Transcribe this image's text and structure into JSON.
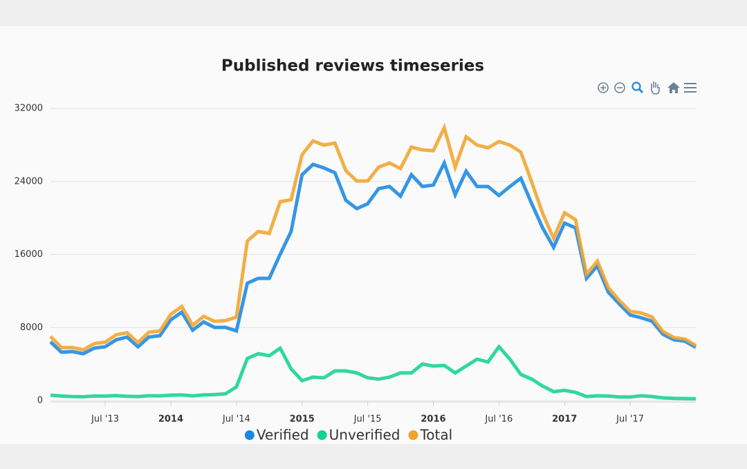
{
  "chart_data": {
    "type": "line",
    "title": "Published reviews timeseries",
    "x": [
      "2013-02",
      "2013-03",
      "2013-04",
      "2013-05",
      "2013-06",
      "2013-07",
      "2013-08",
      "2013-09",
      "2013-10",
      "2013-11",
      "2013-12",
      "2014-01",
      "2014-02",
      "2014-03",
      "2014-04",
      "2014-05",
      "2014-06",
      "2014-07",
      "2014-08",
      "2014-09",
      "2014-10",
      "2014-11",
      "2014-12",
      "2015-01",
      "2015-02",
      "2015-03",
      "2015-04",
      "2015-05",
      "2015-06",
      "2015-07",
      "2015-08",
      "2015-09",
      "2015-10",
      "2015-11",
      "2015-12",
      "2016-01",
      "2016-02",
      "2016-03",
      "2016-04",
      "2016-05",
      "2016-06",
      "2016-07",
      "2016-08",
      "2016-09",
      "2016-10",
      "2016-11",
      "2016-12",
      "2017-01",
      "2017-02",
      "2017-03",
      "2017-04",
      "2017-05",
      "2017-06",
      "2017-07",
      "2017-08",
      "2017-09",
      "2017-10",
      "2017-11",
      "2017-12",
      "2018-01"
    ],
    "series": [
      {
        "name": "Verified",
        "color": "#1a88e0",
        "values": [
          6430,
          5300,
          5370,
          5140,
          5750,
          5900,
          6660,
          6960,
          5900,
          6960,
          7110,
          8850,
          9680,
          7720,
          8620,
          8020,
          8020,
          7640,
          12860,
          13390,
          13390,
          16040,
          18530,
          24740,
          25870,
          25490,
          24960,
          21940,
          21030,
          21560,
          23220,
          23450,
          22390,
          24740,
          23450,
          23600,
          26020,
          22540,
          25120,
          23450,
          23450,
          22470,
          23450,
          24360,
          21560,
          18910,
          16790,
          19440,
          18910,
          13390,
          14750,
          11880,
          10590,
          9380,
          9080,
          8700,
          7260,
          6660,
          6510,
          5830
        ]
      },
      {
        "name": "Unverified",
        "color": "#13d38e",
        "values": [
          600,
          500,
          450,
          420,
          500,
          500,
          550,
          480,
          450,
          540,
          520,
          600,
          620,
          520,
          620,
          660,
          750,
          1500,
          4620,
          5140,
          4920,
          5750,
          3480,
          2190,
          2570,
          2500,
          3250,
          3250,
          3030,
          2500,
          2350,
          2570,
          3030,
          3030,
          4010,
          3780,
          3860,
          3030,
          3780,
          4540,
          4240,
          5900,
          4540,
          2870,
          2350,
          1590,
          980,
          1130,
          910,
          450,
          530,
          500,
          400,
          400,
          530,
          450,
          300,
          250,
          230,
          200
        ]
      },
      {
        "name": "Total",
        "color": "#f0a42e",
        "values": [
          7030,
          5800,
          5820,
          5560,
          6250,
          6400,
          7210,
          7440,
          6350,
          7500,
          7630,
          9450,
          10300,
          8240,
          9240,
          8680,
          8770,
          9140,
          17480,
          18530,
          18310,
          21790,
          22010,
          26930,
          28440,
          27990,
          28210,
          25190,
          24060,
          24060,
          25570,
          26020,
          25420,
          27770,
          27460,
          27380,
          29880,
          25570,
          28900,
          27990,
          27690,
          28370,
          27990,
          27230,
          23910,
          20500,
          17770,
          20570,
          19820,
          13840,
          15280,
          12380,
          10990,
          9780,
          9610,
          9150,
          7560,
          6910,
          6740,
          6030
        ]
      }
    ],
    "xlim": [
      "2013-02",
      "2018-01"
    ],
    "xticks": [
      {
        "value": "2013-07",
        "label": "Jul '13"
      },
      {
        "value": "2014-01",
        "label": "2014"
      },
      {
        "value": "2014-07",
        "label": "Jul '14"
      },
      {
        "value": "2015-01",
        "label": "2015"
      },
      {
        "value": "2015-07",
        "label": "Jul '15"
      },
      {
        "value": "2016-01",
        "label": "2016"
      },
      {
        "value": "2016-07",
        "label": "Jul '16"
      },
      {
        "value": "2017-01",
        "label": "2017"
      },
      {
        "value": "2017-07",
        "label": "Jul '17"
      }
    ],
    "ylim": [
      0,
      32000
    ],
    "yticks": [
      0,
      8000,
      16000,
      24000,
      32000
    ],
    "grid": true,
    "legend": "bottom"
  }
}
